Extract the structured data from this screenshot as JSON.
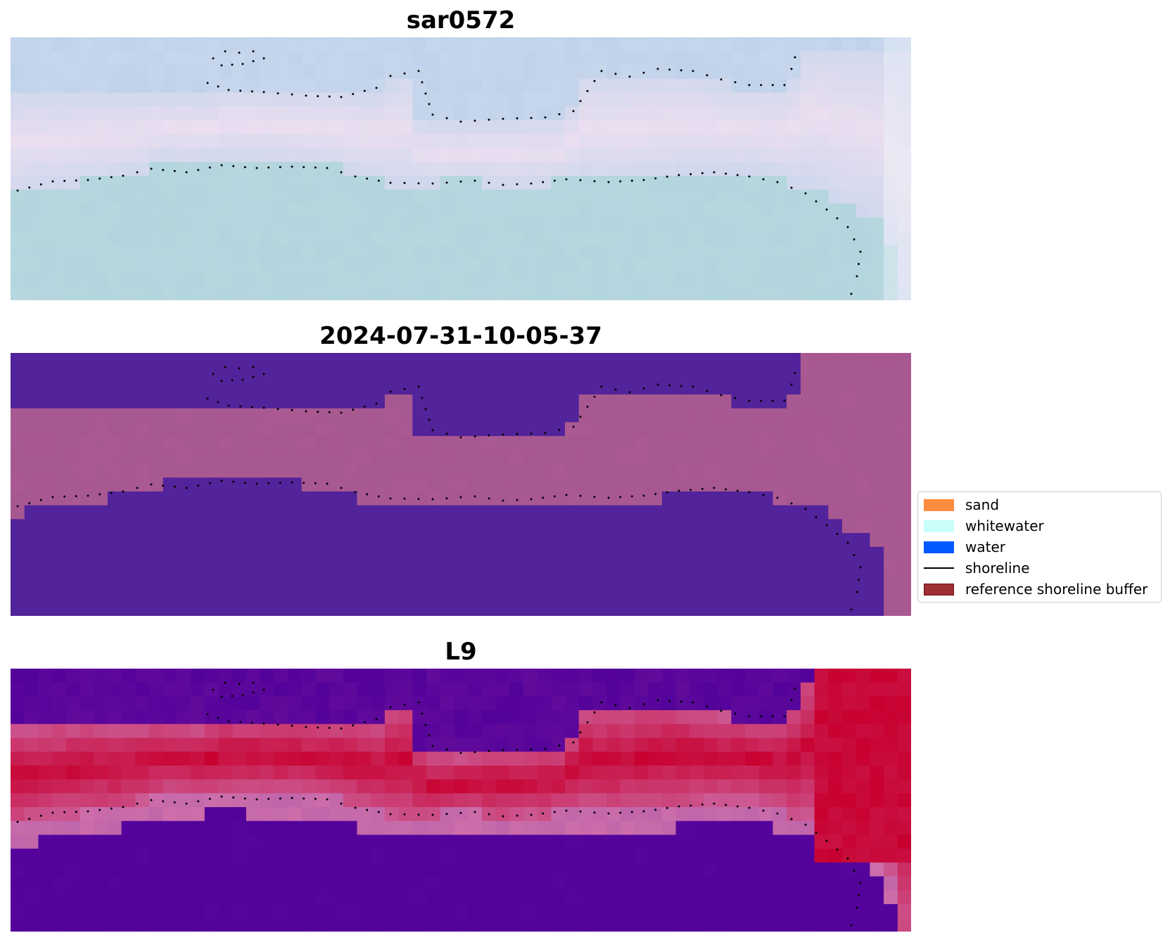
{
  "panels": [
    {
      "title": "sar0572",
      "style": "rgb"
    },
    {
      "title": "2024-07-31-10-05-37",
      "style": "classified"
    },
    {
      "title": "L9",
      "style": "index"
    }
  ],
  "legend": {
    "placement": "center-right",
    "items": [
      {
        "label": "sand",
        "kind": "patch",
        "color": "#ff8c3f",
        "edge": "#ff8c3f"
      },
      {
        "label": "whitewater",
        "kind": "patch",
        "color": "#c8fffa",
        "edge": "#c8fffa"
      },
      {
        "label": "water",
        "kind": "patch",
        "color": "#005aff",
        "edge": "#005aff"
      },
      {
        "label": "shoreline",
        "kind": "line",
        "color": "#000000"
      },
      {
        "label": "reference shoreline buffer",
        "kind": "patch",
        "color": "#9e3034",
        "edge": "#6e1010"
      }
    ]
  },
  "colors": {
    "water_class": "#52239a",
    "sand_class": "#a75891",
    "index_low": "#53029a",
    "index_high": "#c8002f",
    "rgb_sky": "#c6d6ec",
    "rgb_sea": "#b3d5dd"
  }
}
